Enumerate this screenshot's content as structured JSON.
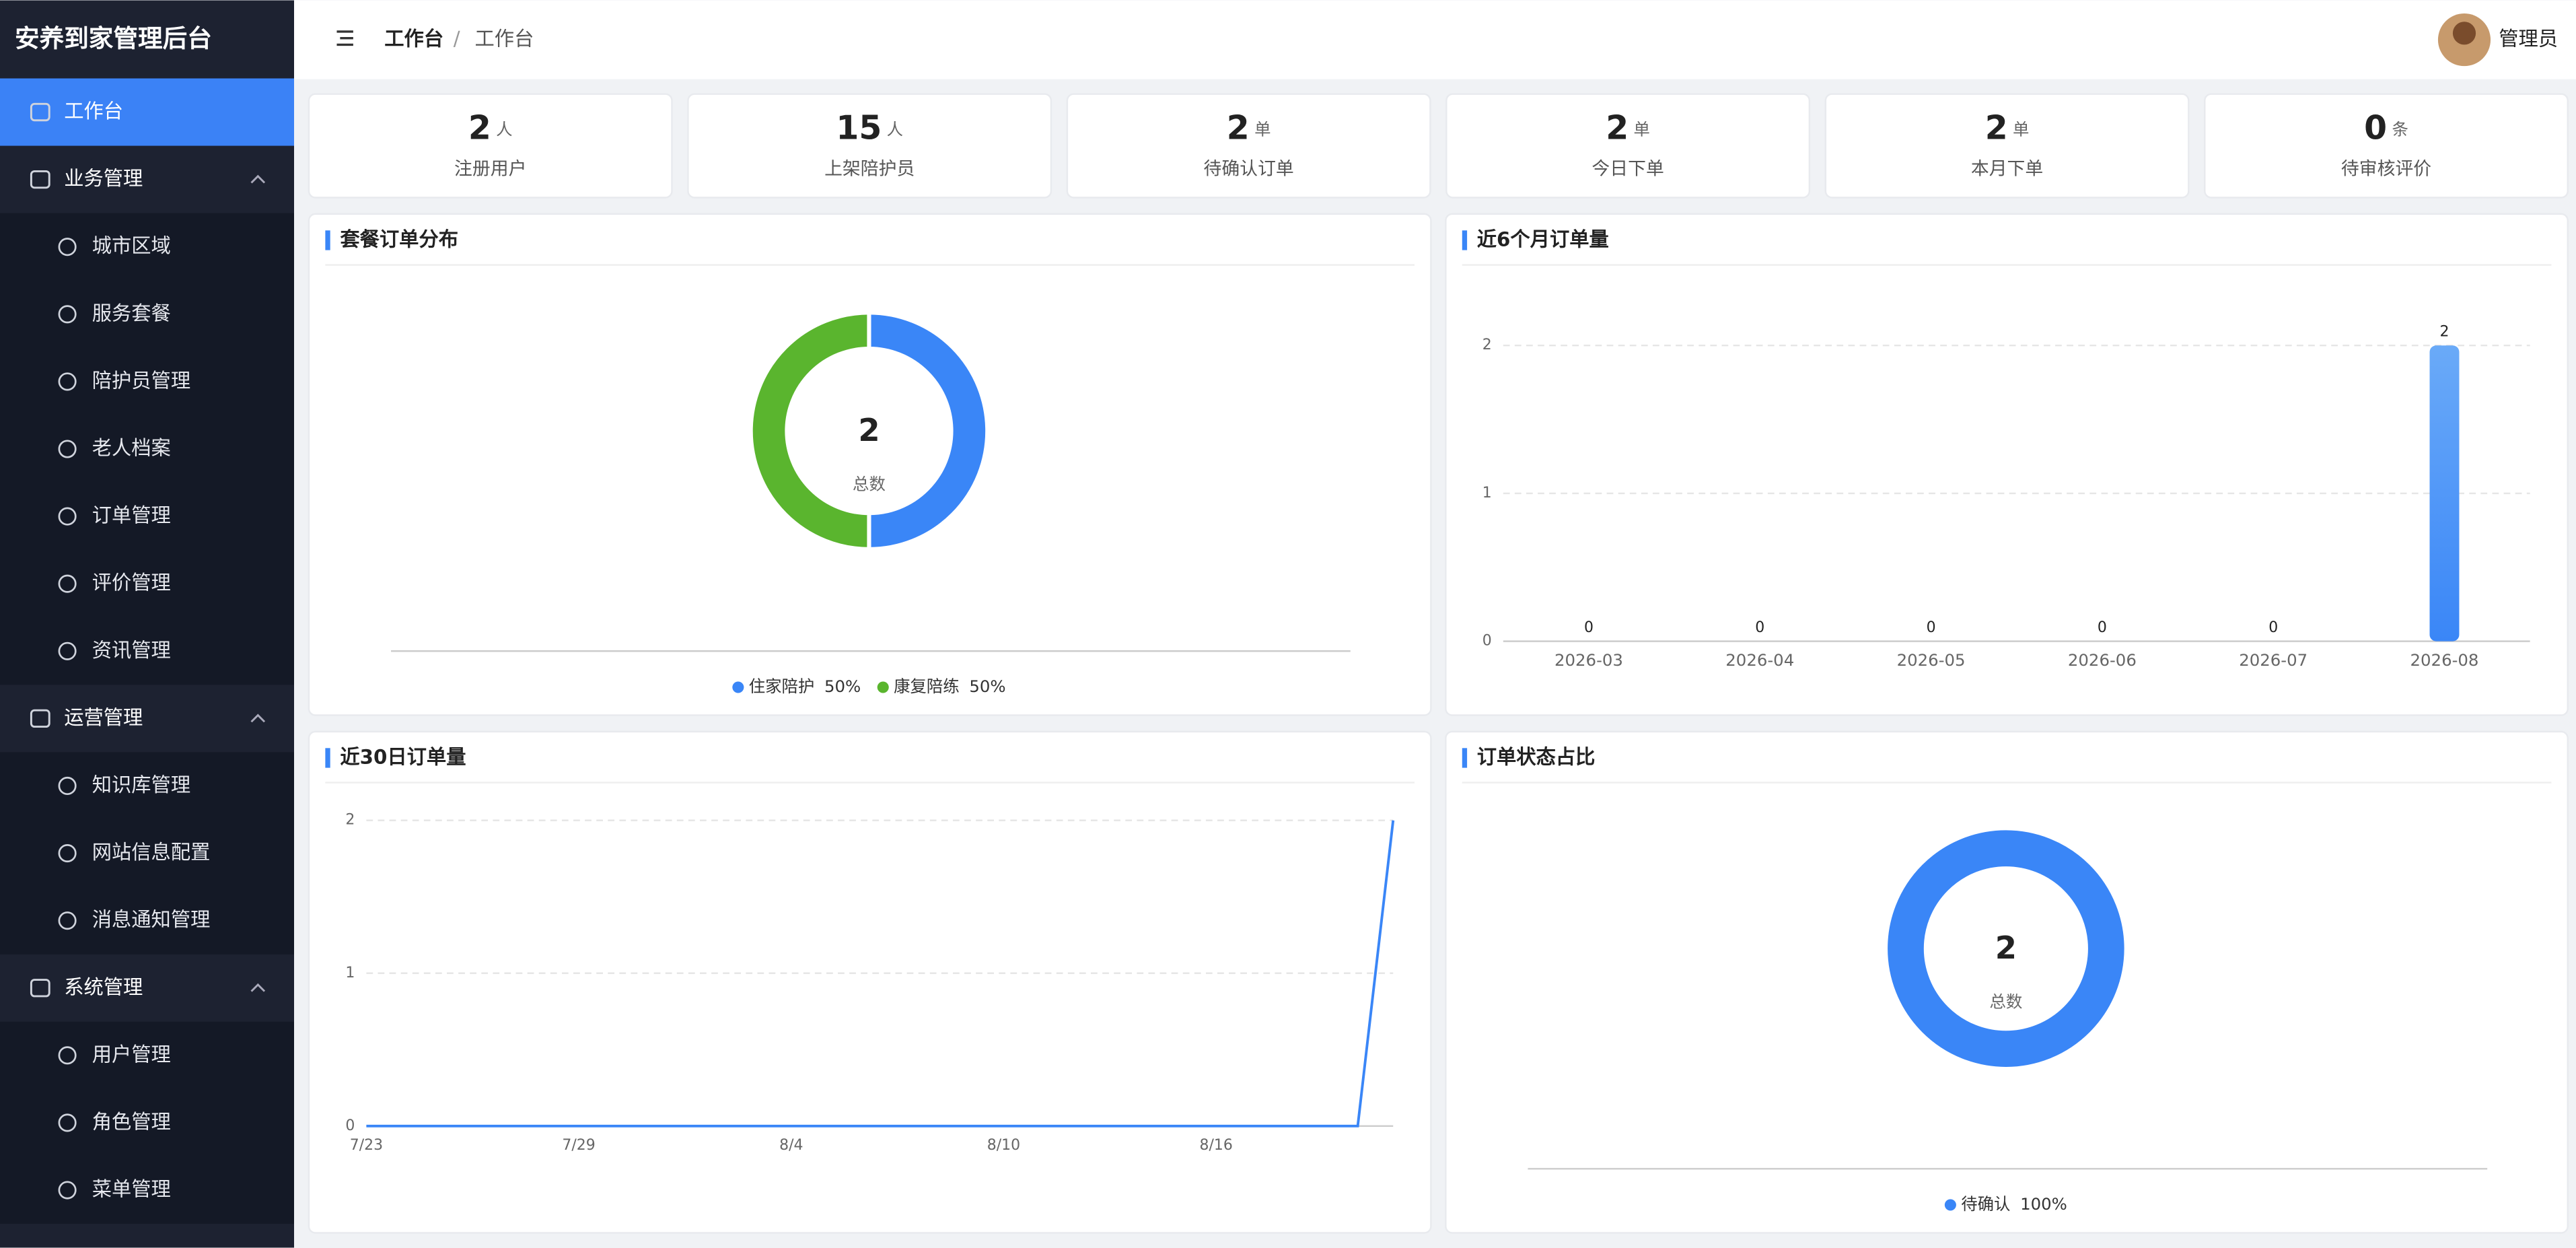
{
  "sidebar": {
    "title": "安养到家管理后台",
    "menu": [
      {
        "label": "工作台"
      },
      {
        "label": "业务管理",
        "children": [
          "城市区域",
          "服务套餐",
          "陪护员管理",
          "老人档案",
          "订单管理",
          "评价管理",
          "资讯管理"
        ]
      },
      {
        "label": "运营管理",
        "children": [
          "知识库管理",
          "网站信息配置",
          "消息通知管理"
        ]
      },
      {
        "label": "系统管理",
        "children": [
          "用户管理",
          "角色管理",
          "菜单管理"
        ]
      }
    ]
  },
  "header": {
    "breadcrumb": [
      "工作台",
      "工作台"
    ],
    "user": "管理员"
  },
  "stats": [
    {
      "value": 2,
      "unit": "人",
      "label": "注册用户"
    },
    {
      "value": 15,
      "unit": "人",
      "label": "上架陪护员"
    },
    {
      "value": 2,
      "unit": "单",
      "label": "待确认订单"
    },
    {
      "value": 2,
      "unit": "单",
      "label": "今日下单"
    },
    {
      "value": 2,
      "unit": "单",
      "label": "本月下单"
    },
    {
      "value": 0,
      "unit": "条",
      "label": "待审核评价"
    }
  ],
  "charts": [
    {
      "type": "donut",
      "title": "套餐订单分布",
      "total": 2,
      "total_label": "总数",
      "series": [
        {
          "name": "住家陪护",
          "color": "#3a86f7",
          "value": 50,
          "value_label": "50%"
        },
        {
          "name": "康复陪练",
          "color": "#5ab52e",
          "value": 50,
          "value_label": "50%"
        }
      ]
    },
    {
      "type": "bar",
      "title": "近6个月订单量",
      "categories": [
        "2026-03",
        "2026-04",
        "2026-05",
        "2026-06",
        "2026-07",
        "2026-08"
      ],
      "values": [
        0,
        0,
        0,
        0,
        0,
        2
      ],
      "color": "#3a86f7",
      "ylim": [
        0,
        2
      ],
      "yticks": [
        0,
        1,
        2
      ],
      "grid": true
    },
    {
      "type": "line",
      "title": "近30日订单量",
      "categories": [
        "7/23",
        null,
        null,
        null,
        null,
        null,
        "7/29",
        null,
        null,
        null,
        null,
        null,
        "8/4",
        null,
        null,
        null,
        null,
        null,
        "8/10",
        null,
        null,
        null,
        null,
        null,
        "8/16",
        null,
        null,
        null,
        null,
        null
      ],
      "values": [
        0,
        0,
        0,
        0,
        0,
        0,
        0,
        0,
        0,
        0,
        0,
        0,
        0,
        0,
        0,
        0,
        0,
        0,
        0,
        0,
        0,
        0,
        0,
        0,
        0,
        0,
        0,
        0,
        0,
        2
      ],
      "color": "#3a86f7",
      "ylim": [
        0,
        2
      ],
      "yticks": [
        0,
        1,
        2
      ],
      "grid": true
    },
    {
      "type": "donut",
      "title": "订单状态占比",
      "total": 2,
      "total_label": "总数",
      "series": [
        {
          "name": "待确认",
          "color": "#3a86f7",
          "value": 100,
          "value_label": "100%"
        }
      ]
    }
  ]
}
